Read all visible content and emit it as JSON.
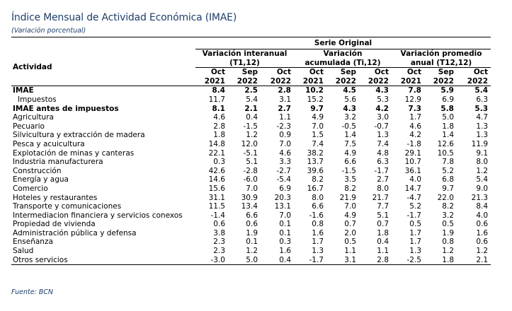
{
  "title": "Índice Mensual de Actividad Económica (IMAE)",
  "subtitle": "(Variación porcentual)",
  "header": {
    "serie": "Serie Original",
    "actividad": "Actividad",
    "group1": [
      "Variación interanual",
      "(T1,12)"
    ],
    "group2": [
      "Variación",
      "acumulada (Ti,12)"
    ],
    "group3": [
      "Variación promedio",
      "anual (T12,12)"
    ],
    "periods": [
      [
        "Oct",
        "2021"
      ],
      [
        "Sep",
        "2022"
      ],
      [
        "Oct",
        "2022"
      ],
      [
        "Oct",
        "2021"
      ],
      [
        "Sep",
        "2022"
      ],
      [
        "Oct",
        "2022"
      ],
      [
        "Oct",
        "2021"
      ],
      [
        "Sep",
        "2022"
      ],
      [
        "Oct",
        "2022"
      ]
    ]
  },
  "rows": [
    {
      "label": "IMAE",
      "bold": true,
      "indent": false,
      "values": [
        "8.4",
        "2.5",
        "2.8",
        "10.2",
        "4.5",
        "4.3",
        "7.8",
        "5.9",
        "5.4"
      ]
    },
    {
      "label": "Impuestos",
      "bold": false,
      "indent": true,
      "values": [
        "11.7",
        "5.4",
        "3.1",
        "15.2",
        "5.6",
        "5.3",
        "12.9",
        "6.9",
        "6.3"
      ]
    },
    {
      "label": "IMAE antes de impuestos",
      "bold": true,
      "indent": false,
      "values": [
        "8.1",
        "2.1",
        "2.7",
        "9.7",
        "4.3",
        "4.2",
        "7.3",
        "5.8",
        "5.3"
      ]
    },
    {
      "label": "Agricultura",
      "bold": false,
      "indent": false,
      "values": [
        "4.6",
        "0.4",
        "1.1",
        "4.9",
        "3.2",
        "3.0",
        "1.7",
        "5.0",
        "4.7"
      ]
    },
    {
      "label": "Pecuario",
      "bold": false,
      "indent": false,
      "values": [
        "2.8",
        "-1.5",
        "-2.3",
        "7.0",
        "-0.5",
        "-0.7",
        "4.6",
        "1.8",
        "1.3"
      ]
    },
    {
      "label": "Silvicultura y extracción de madera",
      "bold": false,
      "indent": false,
      "values": [
        "1.8",
        "1.2",
        "0.9",
        "1.5",
        "1.4",
        "1.3",
        "4.2",
        "1.4",
        "1.3"
      ]
    },
    {
      "label": "Pesca y acuicultura",
      "bold": false,
      "indent": false,
      "values": [
        "14.8",
        "12.0",
        "7.0",
        "7.4",
        "7.5",
        "7.4",
        "-1.8",
        "12.6",
        "11.9"
      ]
    },
    {
      "label": "Explotación de minas y canteras",
      "bold": false,
      "indent": false,
      "values": [
        "22.1",
        "-5.1",
        "4.6",
        "38.2",
        "4.9",
        "4.8",
        "29.1",
        "10.5",
        "9.1"
      ]
    },
    {
      "label": "Industria manufacturera",
      "bold": false,
      "indent": false,
      "values": [
        "0.3",
        "5.1",
        "3.3",
        "13.7",
        "6.6",
        "6.3",
        "10.7",
        "7.8",
        "8.0"
      ]
    },
    {
      "label": "Construcción",
      "bold": false,
      "indent": false,
      "values": [
        "42.6",
        "-2.8",
        "-2.7",
        "39.6",
        "-1.5",
        "-1.7",
        "36.1",
        "5.2",
        "1.2"
      ]
    },
    {
      "label": "Energía y agua",
      "bold": false,
      "indent": false,
      "values": [
        "14.6",
        "-6.0",
        "-5.4",
        "8.2",
        "3.5",
        "2.7",
        "4.0",
        "6.8",
        "5.4"
      ]
    },
    {
      "label": "Comercio",
      "bold": false,
      "indent": false,
      "values": [
        "15.6",
        "7.0",
        "6.9",
        "16.7",
        "8.2",
        "8.0",
        "14.7",
        "9.7",
        "9.0"
      ]
    },
    {
      "label": "Hoteles y restaurantes",
      "bold": false,
      "indent": false,
      "values": [
        "31.1",
        "30.9",
        "20.3",
        "8.0",
        "21.9",
        "21.7",
        "-4.7",
        "22.0",
        "21.3"
      ]
    },
    {
      "label": "Transporte y comunicaciones",
      "bold": false,
      "indent": false,
      "values": [
        "11.5",
        "13.4",
        "13.1",
        "6.6",
        "7.0",
        "7.7",
        "5.2",
        "8.2",
        "8.4"
      ]
    },
    {
      "label": "Intermediacion financiera y servicios conexos",
      "bold": false,
      "indent": false,
      "values": [
        "-1.4",
        "6.6",
        "7.0",
        "-1.6",
        "4.9",
        "5.1",
        "-1.7",
        "3.2",
        "4.0"
      ]
    },
    {
      "label": "Propiedad de vivienda",
      "bold": false,
      "indent": false,
      "values": [
        "0.6",
        "0.6",
        "0.1",
        "0.8",
        "0.7",
        "0.7",
        "0.5",
        "0.5",
        "0.6"
      ]
    },
    {
      "label": "Administración pública y defensa",
      "bold": false,
      "indent": false,
      "values": [
        "3.8",
        "1.9",
        "0.1",
        "1.6",
        "2.0",
        "1.8",
        "1.7",
        "1.9",
        "1.6"
      ]
    },
    {
      "label": "Enseñanza",
      "bold": false,
      "indent": false,
      "values": [
        "2.3",
        "0.1",
        "0.3",
        "1.7",
        "0.5",
        "0.4",
        "1.7",
        "0.8",
        "0.6"
      ]
    },
    {
      "label": "Salud",
      "bold": false,
      "indent": false,
      "values": [
        "2.3",
        "1.2",
        "1.6",
        "1.3",
        "1.1",
        "1.1",
        "1.3",
        "1.2",
        "1.2"
      ]
    },
    {
      "label": "Otros servicios",
      "bold": false,
      "indent": false,
      "values": [
        "-3.0",
        "5.0",
        "0.4",
        "-1.7",
        "3.1",
        "2.8",
        "-2.5",
        "1.8",
        "2.1"
      ]
    }
  ],
  "source": "Fuente: BCN",
  "colors": {
    "title": "#1f3f6b"
  }
}
